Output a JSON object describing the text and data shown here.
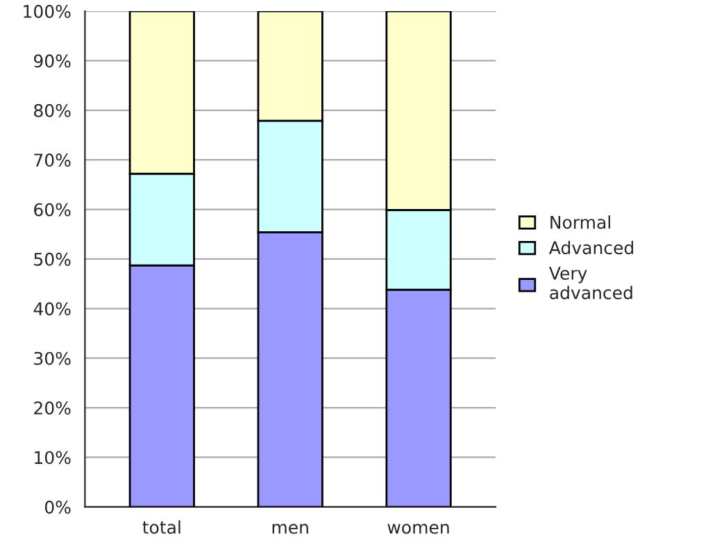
{
  "chart_data": {
    "type": "bar",
    "stacked": true,
    "categories": [
      "total",
      "men",
      "women"
    ],
    "series": [
      {
        "name": "Very advanced",
        "color": "#9999ff",
        "values": [
          48.7,
          55.4,
          43.8
        ]
      },
      {
        "name": "Advanced",
        "color": "#ccffff",
        "values": [
          18.5,
          22.5,
          16.1
        ]
      },
      {
        "name": "Normal",
        "color": "#ffffcc",
        "values": [
          32.8,
          22.1,
          40.1
        ]
      }
    ],
    "ylim": [
      0,
      100
    ],
    "yticks": [
      {
        "value": 0,
        "label": "0%"
      },
      {
        "value": 10,
        "label": "10%"
      },
      {
        "value": 20,
        "label": "20%"
      },
      {
        "value": 30,
        "label": "30%"
      },
      {
        "value": 40,
        "label": "40%"
      },
      {
        "value": 50,
        "label": "50%"
      },
      {
        "value": 60,
        "label": "60%"
      },
      {
        "value": 70,
        "label": "70%"
      },
      {
        "value": 80,
        "label": "80%"
      },
      {
        "value": 90,
        "label": "90%"
      },
      {
        "value": 100,
        "label": "100%"
      }
    ],
    "grid": "y",
    "legend": "right"
  }
}
